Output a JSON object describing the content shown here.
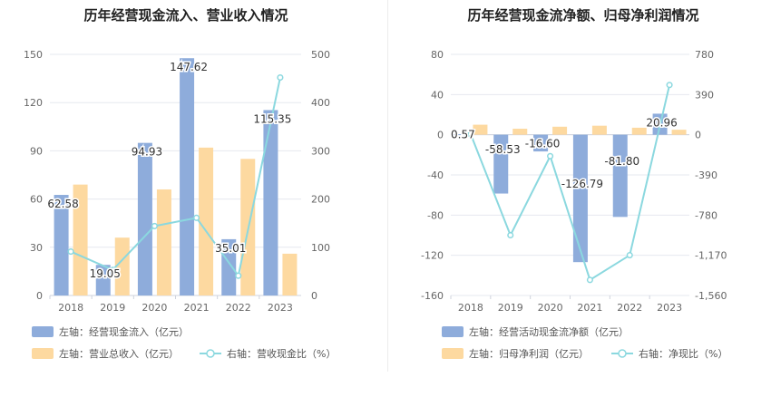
{
  "colors": {
    "bar_blue": "#8eacdb",
    "bar_orange": "#fdd9a0",
    "line_cyan": "#8bd8df",
    "axis_text": "#666666",
    "grid": "#e6e8ef",
    "title": "#222222"
  },
  "chart_data": [
    {
      "type": "bar",
      "title": "历年经营现金流入、营业收入情况",
      "categories": [
        "2018",
        "2019",
        "2020",
        "2021",
        "2022",
        "2023"
      ],
      "left_axis": {
        "ticks": [
          "0",
          "30",
          "60",
          "90",
          "120",
          "150"
        ],
        "ylim": [
          0,
          150
        ]
      },
      "right_axis": {
        "ticks": [
          "0",
          "100",
          "200",
          "300",
          "400",
          "500"
        ],
        "ylim": [
          0,
          500
        ]
      },
      "series": [
        {
          "name": "左轴：经营现金流入（亿元）",
          "type": "bar",
          "axis": "left",
          "color": "#8eacdb",
          "values": [
            62.58,
            19.05,
            94.93,
            147.62,
            35.01,
            115.35
          ],
          "labels": [
            "62.58",
            "19.05",
            "94.93",
            "147.62",
            "35.01",
            "115.35"
          ]
        },
        {
          "name": "左轴：营业总收入（亿元）",
          "type": "bar",
          "axis": "left",
          "color": "#fdd9a0",
          "values": [
            69,
            36,
            66,
            92,
            85,
            26
          ]
        },
        {
          "name": "右轴：营收现金比（%）",
          "type": "line",
          "axis": "right",
          "color": "#8bd8df",
          "values": [
            91,
            53,
            144,
            161,
            41,
            452
          ]
        }
      ],
      "legend_position": "bottom-left"
    },
    {
      "type": "bar",
      "title": "历年经营现金流净额、归母净利润情况",
      "categories": [
        "2018",
        "2019",
        "2020",
        "2021",
        "2022",
        "2023"
      ],
      "left_axis": {
        "ticks": [
          "-160",
          "-120",
          "-80",
          "-40",
          "0",
          "40",
          "80"
        ],
        "ylim": [
          -160,
          80
        ]
      },
      "right_axis": {
        "ticks": [
          "-1,560",
          "-1,170",
          "-780",
          "-390",
          "0",
          "390",
          "780"
        ],
        "ylim": [
          -1560,
          780
        ]
      },
      "series": [
        {
          "name": "左轴：经营活动现金流净额（亿元）",
          "type": "bar",
          "axis": "left",
          "color": "#8eacdb",
          "values": [
            0.57,
            -58.53,
            -16.6,
            -126.79,
            -81.8,
            20.96
          ],
          "labels": [
            "0.57",
            "-58.53",
            "-16.60",
            "-126.79",
            "-81.80",
            "20.96"
          ]
        },
        {
          "name": "左轴：归母净利润（亿元）",
          "type": "bar",
          "axis": "left",
          "color": "#fdd9a0",
          "values": [
            10,
            6,
            8,
            9,
            7,
            5
          ]
        },
        {
          "name": "右轴：净现比（%）",
          "type": "line",
          "axis": "right",
          "color": "#8bd8df",
          "values": [
            6,
            -975,
            -208,
            -1409,
            -1169,
            483
          ]
        }
      ],
      "legend_position": "bottom-left"
    }
  ]
}
